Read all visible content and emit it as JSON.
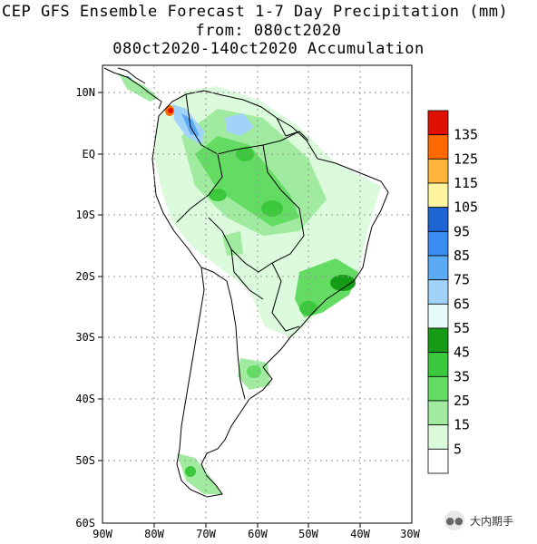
{
  "title": {
    "line1": "CEP GFS Ensemble Forecast 1-7 Day Precipitation (mm)",
    "line2": "from: 080ct2020",
    "line3": "080ct2020-140ct2020 Accumulation"
  },
  "axes": {
    "y_ticks": [
      "10N",
      "EQ",
      "10S",
      "20S",
      "30S",
      "40S",
      "50S",
      "60S"
    ],
    "x_ticks": [
      "90W",
      "80W",
      "70W",
      "60W",
      "50W",
      "40W",
      "30W"
    ]
  },
  "colorbar": {
    "labels": [
      "135",
      "125",
      "115",
      "105",
      "95",
      "85",
      "75",
      "65",
      "55",
      "45",
      "35",
      "25",
      "15",
      "5"
    ],
    "colors": [
      "#e01000",
      "#ff6a00",
      "#ffb43c",
      "#fff5a0",
      "#1e64d2",
      "#3a8cf0",
      "#5aaaf5",
      "#a0d2fa",
      "#e6fafa",
      "#169b16",
      "#3cc83c",
      "#64dc64",
      "#a0eba0",
      "#dcfadc",
      "#ffffff"
    ]
  },
  "watermark": {
    "text": "大内期手",
    "icon": "wechat-icon"
  }
}
